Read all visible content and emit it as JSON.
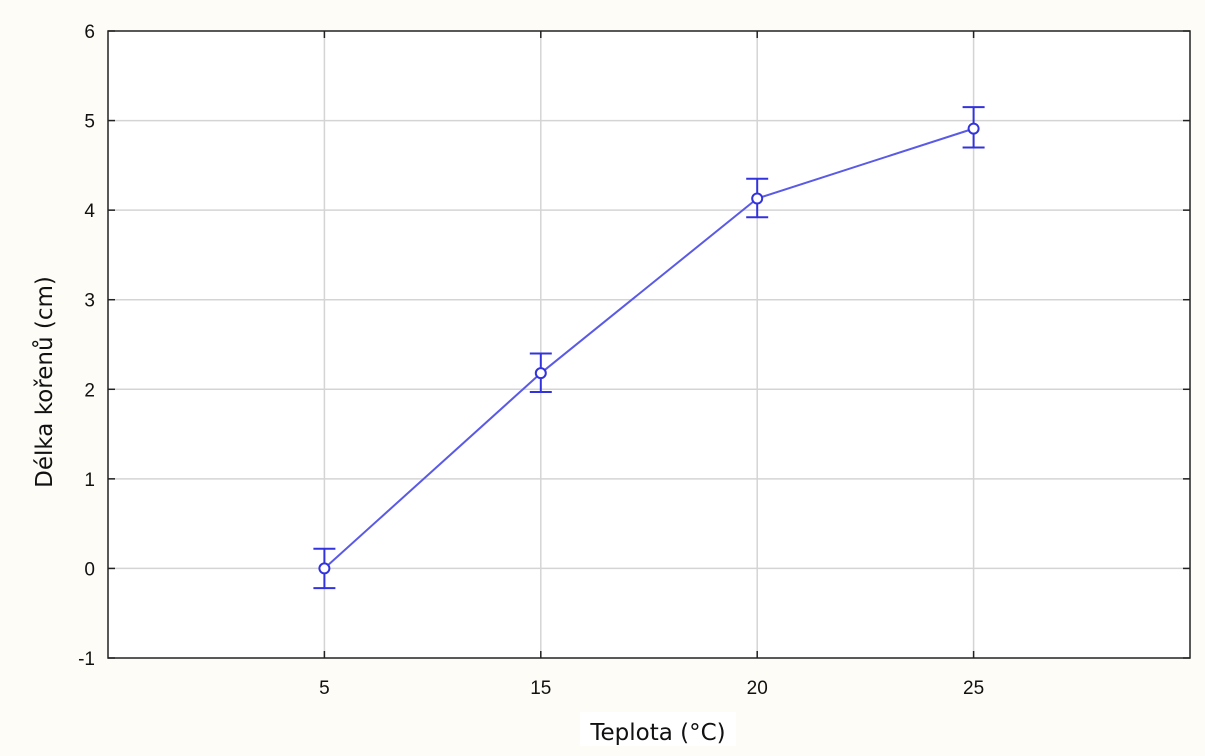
{
  "chart_data": {
    "type": "line",
    "title": "",
    "xlabel": "Teplota (°C)",
    "ylabel": "Délka kořenů (cm)",
    "categories": [
      "5",
      "15",
      "20",
      "25"
    ],
    "series": [
      {
        "values": [
          0.0,
          2.18,
          4.13,
          4.91
        ],
        "error_low": [
          -0.22,
          1.97,
          3.92,
          4.7
        ],
        "error_high": [
          0.22,
          2.4,
          4.35,
          5.15
        ],
        "color": "#3333dd"
      }
    ],
    "ylim": [
      -1,
      6
    ],
    "yticks": [
      "-1",
      "0",
      "1",
      "2",
      "3",
      "4",
      "5",
      "6"
    ],
    "grid": true,
    "legend": "none"
  }
}
